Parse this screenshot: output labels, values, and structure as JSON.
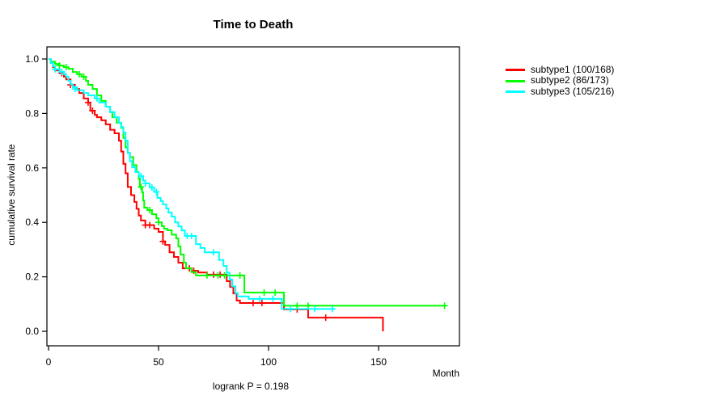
{
  "chart_data": {
    "type": "line",
    "subtype": "kaplan-meier-survival",
    "title": "Time to Death",
    "xlabel": "Month",
    "ylabel": "cumulative survival rate",
    "annotation": "logrank P = 0.198",
    "xlim": [
      0,
      187
    ],
    "ylim": [
      0,
      1
    ],
    "xticks": [
      0,
      50,
      100,
      150
    ],
    "yticks": [
      "0.0",
      "0.2",
      "0.4",
      "0.6",
      "0.8",
      "1.0"
    ],
    "grid": false,
    "legend_position": "right-outside",
    "frame_color": "#000000",
    "series": [
      {
        "name": "subtype1 (100/168)",
        "color": "#ff0000",
        "steps": [
          [
            0,
            1
          ],
          [
            1,
            0.985
          ],
          [
            2,
            0.97
          ],
          [
            3,
            0.958
          ],
          [
            5,
            0.948
          ],
          [
            7,
            0.935
          ],
          [
            8,
            0.925
          ],
          [
            10,
            0.905
          ],
          [
            12,
            0.89
          ],
          [
            14,
            0.875
          ],
          [
            16,
            0.855
          ],
          [
            18,
            0.84
          ],
          [
            19,
            0.81
          ],
          [
            21,
            0.795
          ],
          [
            22,
            0.786
          ],
          [
            24,
            0.775
          ],
          [
            26,
            0.76
          ],
          [
            28,
            0.74
          ],
          [
            30,
            0.727
          ],
          [
            32,
            0.7
          ],
          [
            33,
            0.66
          ],
          [
            34,
            0.615
          ],
          [
            35,
            0.58
          ],
          [
            36,
            0.53
          ],
          [
            37.5,
            0.5
          ],
          [
            39,
            0.475
          ],
          [
            40,
            0.45
          ],
          [
            41,
            0.425
          ],
          [
            42,
            0.407
          ],
          [
            44,
            0.39
          ],
          [
            48,
            0.377
          ],
          [
            50,
            0.365
          ],
          [
            52,
            0.33
          ],
          [
            53,
            0.317
          ],
          [
            55,
            0.29
          ],
          [
            57,
            0.273
          ],
          [
            59,
            0.252
          ],
          [
            61,
            0.231
          ],
          [
            65,
            0.222
          ],
          [
            68,
            0.216
          ],
          [
            72,
            0.208
          ],
          [
            81,
            0.184
          ],
          [
            82.5,
            0.163
          ],
          [
            84,
            0.139
          ],
          [
            85.5,
            0.113
          ],
          [
            87,
            0.104
          ],
          [
            107,
            0.08
          ],
          [
            118,
            0.05
          ],
          [
            152,
            0
          ]
        ],
        "censors": [
          [
            6,
            0.948
          ],
          [
            10,
            0.905
          ],
          [
            18,
            0.84
          ],
          [
            20,
            0.81
          ],
          [
            44,
            0.39
          ],
          [
            46,
            0.39
          ],
          [
            52,
            0.33
          ],
          [
            64,
            0.231
          ],
          [
            66,
            0.222
          ],
          [
            75,
            0.208
          ],
          [
            78,
            0.208
          ],
          [
            93,
            0.104
          ],
          [
            97,
            0.104
          ],
          [
            113,
            0.08
          ],
          [
            126,
            0.05
          ]
        ]
      },
      {
        "name": "subtype2 (86/173)",
        "color": "#00ff00",
        "steps": [
          [
            0,
            1
          ],
          [
            1,
            0.99
          ],
          [
            3,
            0.982
          ],
          [
            5,
            0.976
          ],
          [
            7,
            0.97
          ],
          [
            9,
            0.964
          ],
          [
            11,
            0.952
          ],
          [
            13,
            0.944
          ],
          [
            15,
            0.935
          ],
          [
            17,
            0.92
          ],
          [
            18,
            0.905
          ],
          [
            20,
            0.89
          ],
          [
            22,
            0.866
          ],
          [
            24,
            0.846
          ],
          [
            26,
            0.825
          ],
          [
            28,
            0.805
          ],
          [
            29,
            0.786
          ],
          [
            31,
            0.766
          ],
          [
            33,
            0.747
          ],
          [
            34,
            0.71
          ],
          [
            35,
            0.675
          ],
          [
            36,
            0.655
          ],
          [
            37,
            0.64
          ],
          [
            38.5,
            0.61
          ],
          [
            40,
            0.585
          ],
          [
            41,
            0.56
          ],
          [
            41.5,
            0.53
          ],
          [
            42.5,
            0.51
          ],
          [
            43,
            0.48
          ],
          [
            43.5,
            0.454
          ],
          [
            45,
            0.445
          ],
          [
            47,
            0.43
          ],
          [
            49,
            0.415
          ],
          [
            50,
            0.4
          ],
          [
            51.5,
            0.386
          ],
          [
            52.5,
            0.377
          ],
          [
            54,
            0.371
          ],
          [
            56,
            0.355
          ],
          [
            58,
            0.341
          ],
          [
            59,
            0.312
          ],
          [
            60,
            0.282
          ],
          [
            61.5,
            0.252
          ],
          [
            62.5,
            0.231
          ],
          [
            65,
            0.217
          ],
          [
            67,
            0.205
          ],
          [
            89,
            0.142
          ],
          [
            107,
            0.094
          ],
          [
            180,
            0.094
          ]
        ],
        "censors": [
          [
            5,
            0.976
          ],
          [
            8,
            0.97
          ],
          [
            14,
            0.944
          ],
          [
            16,
            0.935
          ],
          [
            42,
            0.53
          ],
          [
            46,
            0.445
          ],
          [
            50,
            0.4
          ],
          [
            72,
            0.205
          ],
          [
            77,
            0.205
          ],
          [
            80,
            0.205
          ],
          [
            87,
            0.205
          ],
          [
            98,
            0.142
          ],
          [
            103,
            0.142
          ],
          [
            113,
            0.094
          ],
          [
            118,
            0.094
          ],
          [
            180,
            0.094
          ]
        ]
      },
      {
        "name": "subtype3 (105/216)",
        "color": "#00ffff",
        "steps": [
          [
            0,
            1
          ],
          [
            1,
            0.985
          ],
          [
            2,
            0.973
          ],
          [
            3,
            0.962
          ],
          [
            5,
            0.953
          ],
          [
            7,
            0.944
          ],
          [
            8,
            0.935
          ],
          [
            9,
            0.92
          ],
          [
            10,
            0.907
          ],
          [
            11,
            0.896
          ],
          [
            13,
            0.885
          ],
          [
            16,
            0.875
          ],
          [
            18,
            0.866
          ],
          [
            21,
            0.855
          ],
          [
            23,
            0.84
          ],
          [
            26,
            0.825
          ],
          [
            28,
            0.805
          ],
          [
            30,
            0.786
          ],
          [
            32,
            0.766
          ],
          [
            33,
            0.75
          ],
          [
            34,
            0.73
          ],
          [
            35,
            0.7
          ],
          [
            36,
            0.655
          ],
          [
            37,
            0.625
          ],
          [
            38,
            0.602
          ],
          [
            39.5,
            0.585
          ],
          [
            41,
            0.57
          ],
          [
            43,
            0.553
          ],
          [
            44,
            0.543
          ],
          [
            46,
            0.528
          ],
          [
            48,
            0.512
          ],
          [
            49.5,
            0.49
          ],
          [
            51,
            0.478
          ],
          [
            52,
            0.466
          ],
          [
            53.5,
            0.451
          ],
          [
            54.5,
            0.436
          ],
          [
            56,
            0.421
          ],
          [
            57.5,
            0.4
          ],
          [
            59,
            0.385
          ],
          [
            60.5,
            0.37
          ],
          [
            62,
            0.35
          ],
          [
            67,
            0.32
          ],
          [
            69,
            0.306
          ],
          [
            71,
            0.29
          ],
          [
            77.5,
            0.262
          ],
          [
            79.5,
            0.24
          ],
          [
            81,
            0.215
          ],
          [
            82.3,
            0.19
          ],
          [
            83.5,
            0.165
          ],
          [
            85,
            0.14
          ],
          [
            86,
            0.128
          ],
          [
            91,
            0.119
          ],
          [
            106,
            0.082
          ],
          [
            130,
            0.082
          ]
        ],
        "censors": [
          [
            3,
            0.962
          ],
          [
            6,
            0.953
          ],
          [
            12,
            0.89
          ],
          [
            22,
            0.855
          ],
          [
            42,
            0.57
          ],
          [
            44,
            0.543
          ],
          [
            47,
            0.528
          ],
          [
            49,
            0.512
          ],
          [
            63,
            0.35
          ],
          [
            65,
            0.35
          ],
          [
            75,
            0.29
          ],
          [
            96,
            0.119
          ],
          [
            102,
            0.119
          ],
          [
            110,
            0.082
          ],
          [
            121,
            0.082
          ],
          [
            129,
            0.082
          ]
        ]
      }
    ]
  }
}
